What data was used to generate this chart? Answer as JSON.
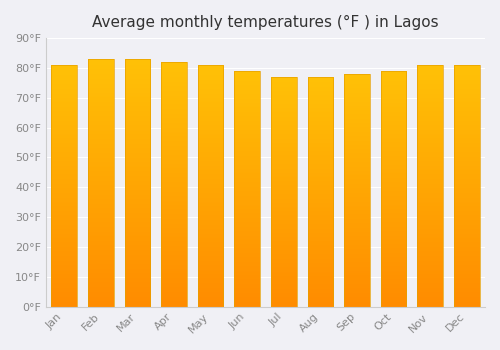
{
  "title": "Average monthly temperatures (°F ) in Lagos",
  "months": [
    "Jan",
    "Feb",
    "Mar",
    "Apr",
    "May",
    "Jun",
    "Jul",
    "Aug",
    "Sep",
    "Oct",
    "Nov",
    "Dec"
  ],
  "values": [
    81,
    83,
    83,
    82,
    81,
    79,
    77,
    77,
    78,
    79,
    81,
    81
  ],
  "ylim": [
    0,
    90
  ],
  "yticks": [
    0,
    10,
    20,
    30,
    40,
    50,
    60,
    70,
    80,
    90
  ],
  "bar_color_top": "#FFC107",
  "bar_color_bottom": "#FF8C00",
  "bar_edge_color": "#E6A000",
  "background_color": "#f0f0f5",
  "grid_color": "#ffffff",
  "title_fontsize": 11,
  "tick_fontsize": 8
}
